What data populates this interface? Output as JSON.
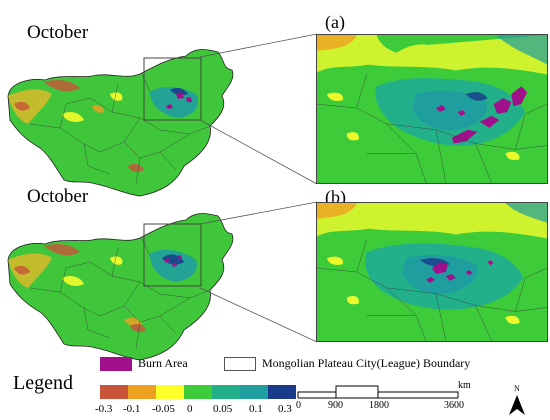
{
  "maps": [
    {
      "month_label": "October",
      "panel_label": "(a)"
    },
    {
      "month_label": "October",
      "panel_label": "(b)"
    }
  ],
  "legend": {
    "title": "Legend",
    "burn_area_label": "Burn Area",
    "boundary_label": "Mongolian Plateau City(League) Boundary",
    "burn_color": "#a0108a",
    "color_scale": [
      {
        "color": "#c8543a"
      },
      {
        "color": "#f0a020"
      },
      {
        "color": "#ffff2a"
      },
      {
        "color": "#3ecb3a"
      },
      {
        "color": "#22b08a"
      },
      {
        "color": "#1f9ea0"
      },
      {
        "color": "#1a3a8a"
      }
    ],
    "ticks": [
      "-0.3",
      "-0.1",
      "-0.05",
      "0",
      "0.05",
      "0.1",
      "0.3"
    ]
  },
  "scale_bar": {
    "unit": "km",
    "ticks": [
      "0",
      "900",
      "1800",
      "3600"
    ]
  },
  "north_arrow": {
    "label": "N"
  }
}
